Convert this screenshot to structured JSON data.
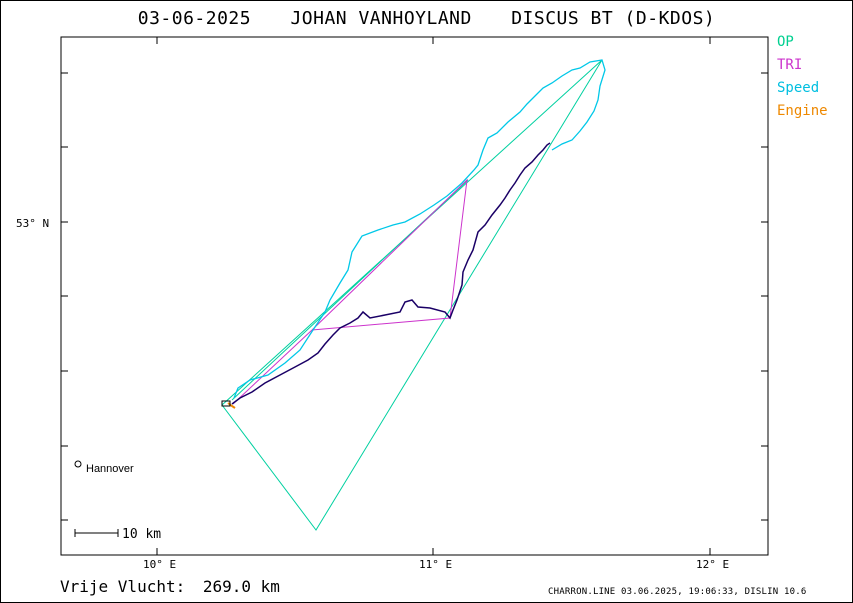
{
  "header": {
    "date": "03-06-2025",
    "pilot": "JOHAN VANHOYLAND",
    "glider": "DISCUS BT (D-KDOS)"
  },
  "legend": [
    {
      "key": "op",
      "label": "OP",
      "color": "#00d090"
    },
    {
      "key": "tri",
      "label": "TRI",
      "color": "#cc33cc"
    },
    {
      "key": "speed",
      "label": "Speed",
      "color": "#00bfe0"
    },
    {
      "key": "engine",
      "label": "Engine",
      "color": "#ee8800"
    }
  ],
  "axes": {
    "lat_label": "53° N",
    "lon_labels": [
      "10° E",
      "11° E",
      "12° E"
    ]
  },
  "places": {
    "hannover": "Hannover"
  },
  "scale_bar": {
    "label": "10 km"
  },
  "footer": {
    "distance_label": "Vrije Vlucht:",
    "distance_value": "269.0 km",
    "credit": "CHARRON.LINE 03.06.2025, 19:06:33, DISLIN 10.6"
  },
  "colors": {
    "track": "#1a0066",
    "speed_track": "#00c8e8",
    "op": "#00d0a0",
    "tri": "#cc33cc",
    "engine": "#ee8800"
  }
}
